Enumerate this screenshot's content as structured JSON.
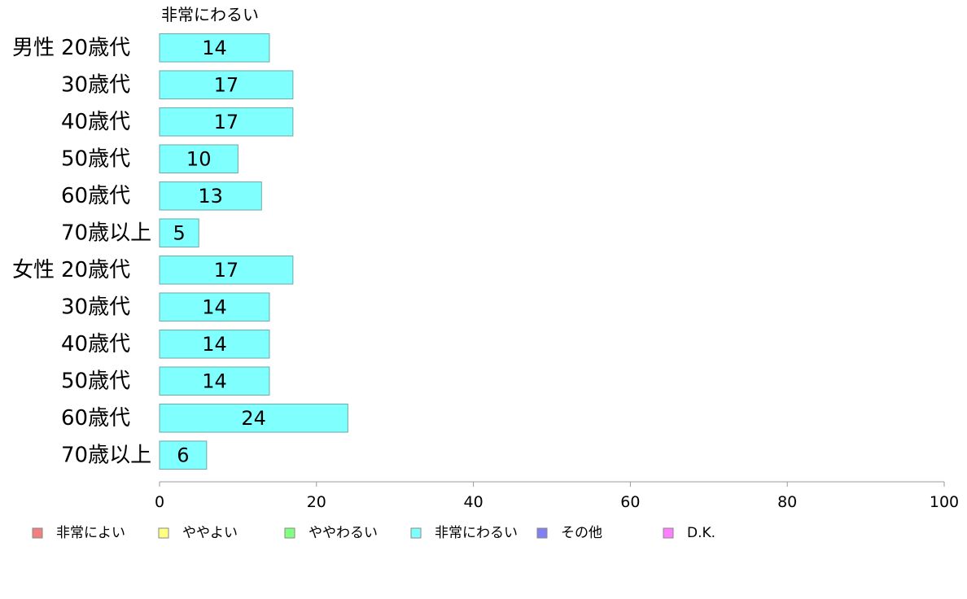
{
  "chart_data": {
    "type": "bar",
    "orientation": "horizontal",
    "series_caption": "非常にわるい",
    "groups": [
      "男性",
      "女性"
    ],
    "categories": [
      {
        "group": "男性",
        "label": "20歳代"
      },
      {
        "group": "",
        "label": "30歳代"
      },
      {
        "group": "",
        "label": "40歳代"
      },
      {
        "group": "",
        "label": "50歳代"
      },
      {
        "group": "",
        "label": "60歳代"
      },
      {
        "group": "",
        "label": "70歳以上"
      },
      {
        "group": "女性",
        "label": "20歳代"
      },
      {
        "group": "",
        "label": "30歳代"
      },
      {
        "group": "",
        "label": "40歳代"
      },
      {
        "group": "",
        "label": "50歳代"
      },
      {
        "group": "",
        "label": "60歳代"
      },
      {
        "group": "",
        "label": "70歳以上"
      }
    ],
    "series": [
      {
        "name": "非常にわるい",
        "color": "#80ffff",
        "values": [
          14,
          17,
          17,
          10,
          13,
          5,
          17,
          14,
          14,
          14,
          24,
          6
        ]
      }
    ],
    "xlim": [
      0,
      100
    ],
    "xticks": [
      0,
      20,
      40,
      60,
      80,
      100
    ],
    "grid": false,
    "legend_position": "bottom",
    "legend": [
      {
        "name": "非常によい",
        "color": "#f08080"
      },
      {
        "name": "ややよい",
        "color": "#ffff80"
      },
      {
        "name": "ややわるい",
        "color": "#80ff80"
      },
      {
        "name": "非常にわるい",
        "color": "#80ffff"
      },
      {
        "name": "その他",
        "color": "#8080f0"
      },
      {
        "name": "D.K.",
        "color": "#ff80ff"
      }
    ]
  }
}
